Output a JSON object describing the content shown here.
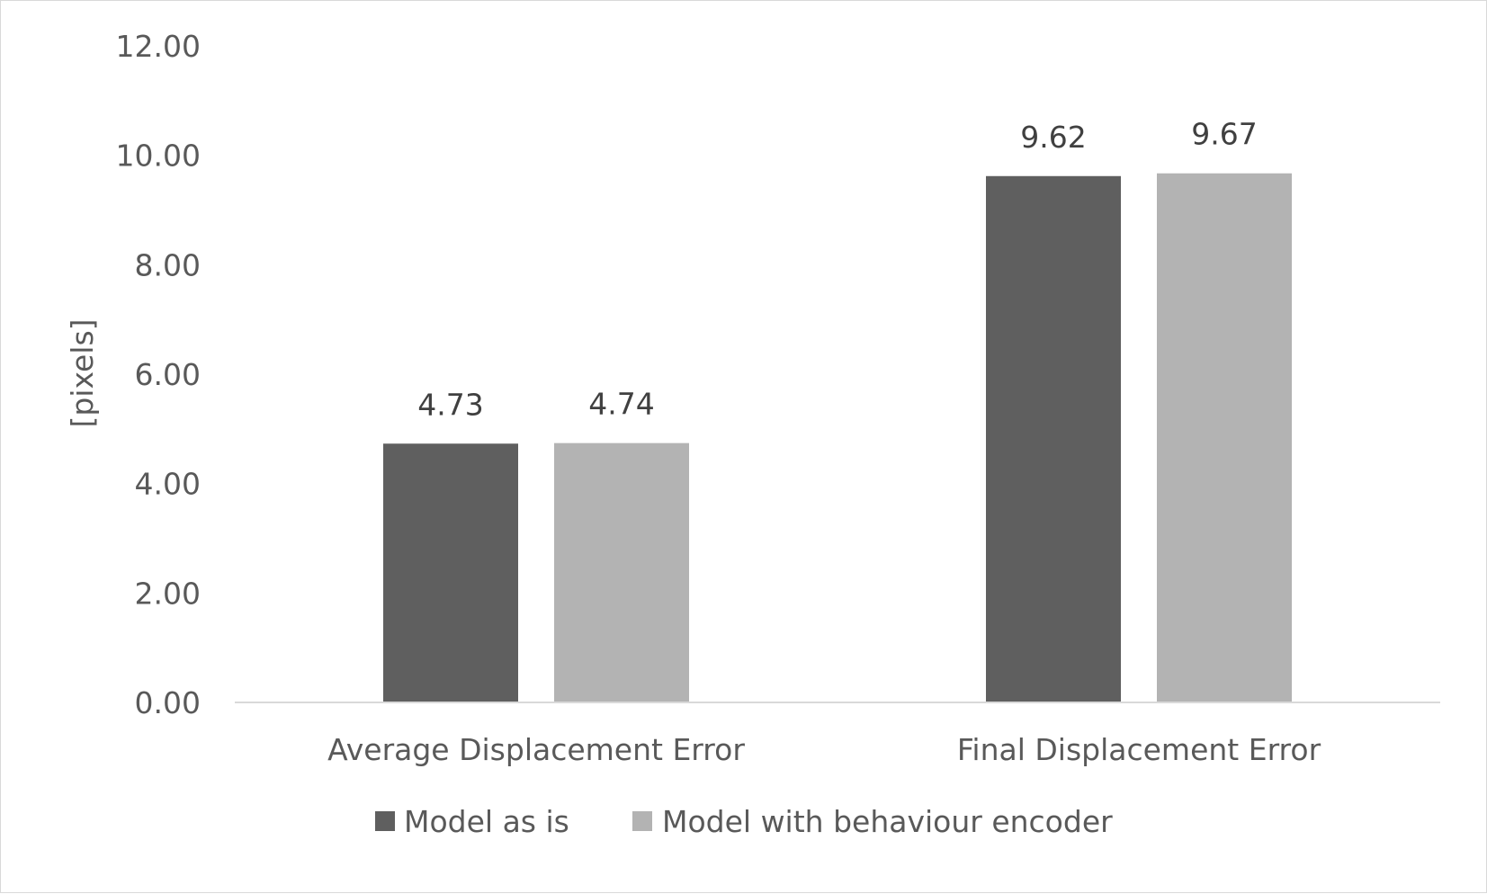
{
  "chart_data": {
    "type": "bar",
    "categories": [
      "Average Displacement Error",
      "Final Displacement Error"
    ],
    "series": [
      {
        "name": "Model as is",
        "values": [
          4.73,
          9.62
        ],
        "color": "#5f5f5f"
      },
      {
        "name": "Model with behaviour encoder",
        "values": [
          4.74,
          9.67
        ],
        "color": "#b3b3b3"
      }
    ],
    "data_labels": [
      [
        "4.73",
        "9.62"
      ],
      [
        "4.74",
        "9.67"
      ]
    ],
    "ylabel": "[pixels]",
    "xlabel": "",
    "title": "",
    "ylim": [
      0,
      12
    ],
    "yticks": [
      "0.00",
      "2.00",
      "4.00",
      "6.00",
      "8.00",
      "10.00",
      "12.00"
    ],
    "grid": false,
    "legend_position": "bottom",
    "axis_color": "#d9d9d9"
  }
}
